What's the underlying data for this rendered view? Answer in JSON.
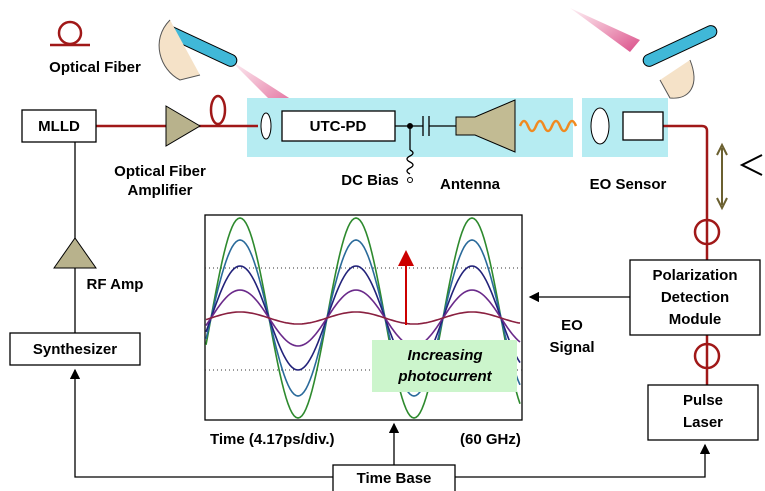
{
  "legend": {
    "fiber_label": "Optical Fiber"
  },
  "blocks": {
    "mlld": "MLLD",
    "amplifier": [
      "Optical Fiber",
      "Amplifier"
    ],
    "utc_pd": "UTC-PD",
    "dc_bias": "DC Bias",
    "antenna": "Antenna",
    "eo_sensor": "EO Sensor",
    "rf_amp": "RF Amp",
    "synthesizer": "Synthesizer",
    "polarization": [
      "Polarization",
      "Detection",
      "Module"
    ],
    "eo_signal": [
      "EO",
      "Signal"
    ],
    "pulse_laser": [
      "Pulse",
      "Laser"
    ],
    "time_base": "Time Base"
  },
  "plot": {
    "annotation": [
      "Increasing",
      "photocurrent"
    ],
    "x_label": "Time (4.17ps/div.)",
    "frequency": "(60 GHz)"
  }
}
